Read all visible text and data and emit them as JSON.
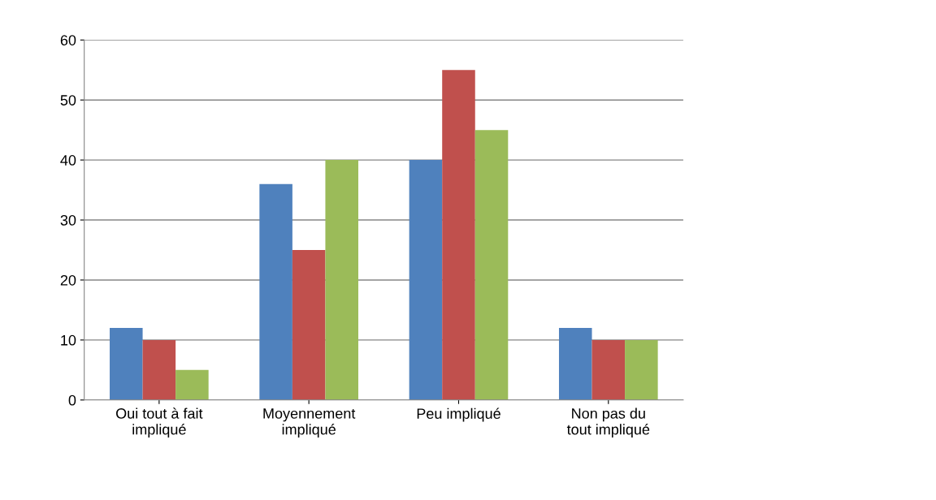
{
  "chart_data": {
    "type": "bar",
    "categories": [
      "Oui tout à fait impliqué",
      "Moyennement impliqué",
      "Peu impliqué",
      "Non pas du tout impliqué"
    ],
    "series": [
      {
        "color": "#4f81bd",
        "values": [
          12,
          36,
          40,
          12
        ]
      },
      {
        "color": "#c0504d",
        "values": [
          10,
          25,
          55,
          10
        ]
      },
      {
        "color": "#9bbb59",
        "values": [
          5,
          40,
          45,
          10
        ]
      }
    ],
    "ylim": [
      0,
      60
    ],
    "yticks": [
      0,
      10,
      20,
      30,
      40,
      50,
      60
    ],
    "grid": "y"
  }
}
